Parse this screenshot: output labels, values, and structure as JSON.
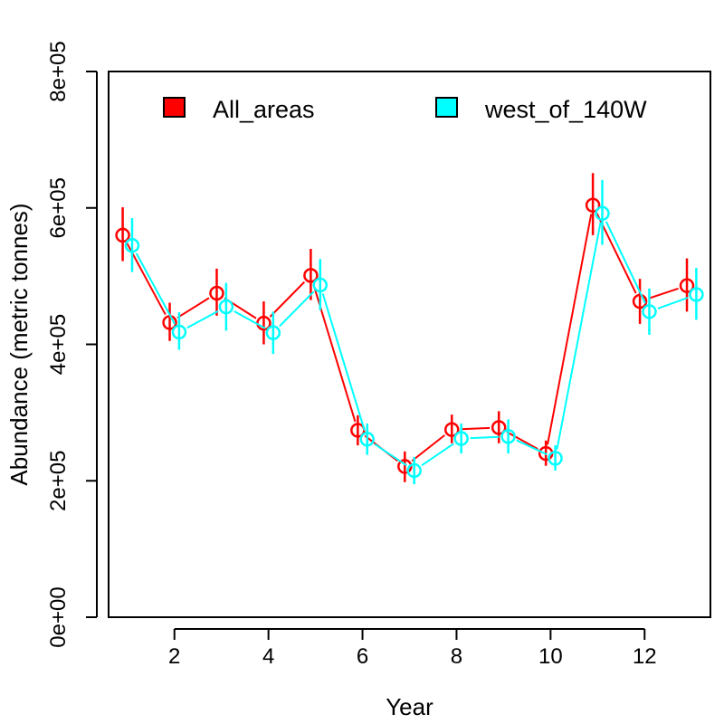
{
  "chart_data": {
    "type": "line",
    "title": "",
    "xlabel": "Year",
    "ylabel": "Abundance (metric tonnes)",
    "xlim": [
      0.6,
      13.4
    ],
    "ylim": [
      0,
      800000
    ],
    "x_ticks": [
      2,
      4,
      6,
      8,
      10,
      12
    ],
    "x_tick_labels": [
      "2",
      "4",
      "6",
      "8",
      "10",
      "12"
    ],
    "y_ticks": [
      0,
      200000,
      400000,
      600000,
      800000
    ],
    "y_tick_labels": [
      "0e+00",
      "2e+05",
      "4e+05",
      "6e+05",
      "8e+05"
    ],
    "grid": false,
    "legend_position": "top",
    "series": [
      {
        "name": "All_areas",
        "color": "#ff0000",
        "x": [
          1,
          2,
          3,
          4,
          5,
          6,
          7,
          8,
          9,
          10,
          11,
          12,
          13
        ],
        "values": [
          560000,
          432000,
          475000,
          431000,
          501000,
          274000,
          221000,
          275000,
          278000,
          240000,
          604000,
          463000,
          486000
        ],
        "lower": [
          522000,
          405000,
          442000,
          400000,
          465000,
          252000,
          198000,
          255000,
          255000,
          222000,
          560000,
          430000,
          448000
        ],
        "upper": [
          601000,
          461000,
          511000,
          463000,
          540000,
          296000,
          243000,
          297000,
          302000,
          259000,
          651000,
          496000,
          526000
        ]
      },
      {
        "name": "west_of_140W",
        "color": "#00ffff",
        "x": [
          1,
          2,
          3,
          4,
          5,
          6,
          7,
          8,
          9,
          10,
          11,
          12,
          13
        ],
        "values": [
          545000,
          418000,
          455000,
          417000,
          487000,
          261000,
          215000,
          262000,
          265000,
          233000,
          592000,
          448000,
          473000
        ],
        "lower": [
          506000,
          392000,
          420000,
          386000,
          450000,
          238000,
          195000,
          240000,
          240000,
          215000,
          546000,
          414000,
          436000
        ],
        "upper": [
          585000,
          447000,
          490000,
          448000,
          525000,
          284000,
          235000,
          284000,
          290000,
          252000,
          641000,
          482000,
          512000
        ]
      }
    ]
  }
}
